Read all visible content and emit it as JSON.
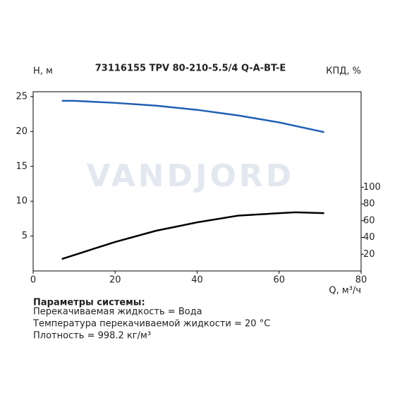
{
  "chart_data": {
    "type": "line",
    "title": "73116155 TPV 80-210-5.5/4 Q-A-BT-E",
    "ylabel": "H, м",
    "y2label": "КПД, %",
    "xlabel": "Q, м³/ч",
    "watermark": "VANDJORD",
    "xlim": [
      0,
      80
    ],
    "xticks": [
      0,
      20,
      40,
      60,
      80
    ],
    "ylim": [
      0,
      25.7
    ],
    "yticks": [
      5,
      10,
      15,
      20,
      25
    ],
    "y2lim": [
      0,
      214
    ],
    "y2ticks": [
      20,
      40,
      60,
      80,
      100
    ],
    "series": [
      {
        "name": "H",
        "color": "#1f5fb4",
        "axis": "y",
        "x": [
          7,
          10,
          20,
          30,
          40,
          50,
          60,
          71
        ],
        "values": [
          24.4,
          24.4,
          24.1,
          23.7,
          23.1,
          22.3,
          21.3,
          19.9
        ]
      },
      {
        "name": "КПД",
        "color": "#000000",
        "axis": "y2",
        "x": [
          7,
          20,
          30,
          40,
          50,
          60,
          64,
          71
        ],
        "values": [
          14.3,
          34.6,
          48,
          58,
          66,
          69,
          70,
          69
        ]
      }
    ]
  },
  "notes": {
    "heading": "Параметры системы:",
    "lines": [
      "Перекачиваемая жидкость = Вода",
      "Температура перекачиваемой жидкости = 20 °C",
      "Плотность = 998.2 кг/м³"
    ]
  }
}
